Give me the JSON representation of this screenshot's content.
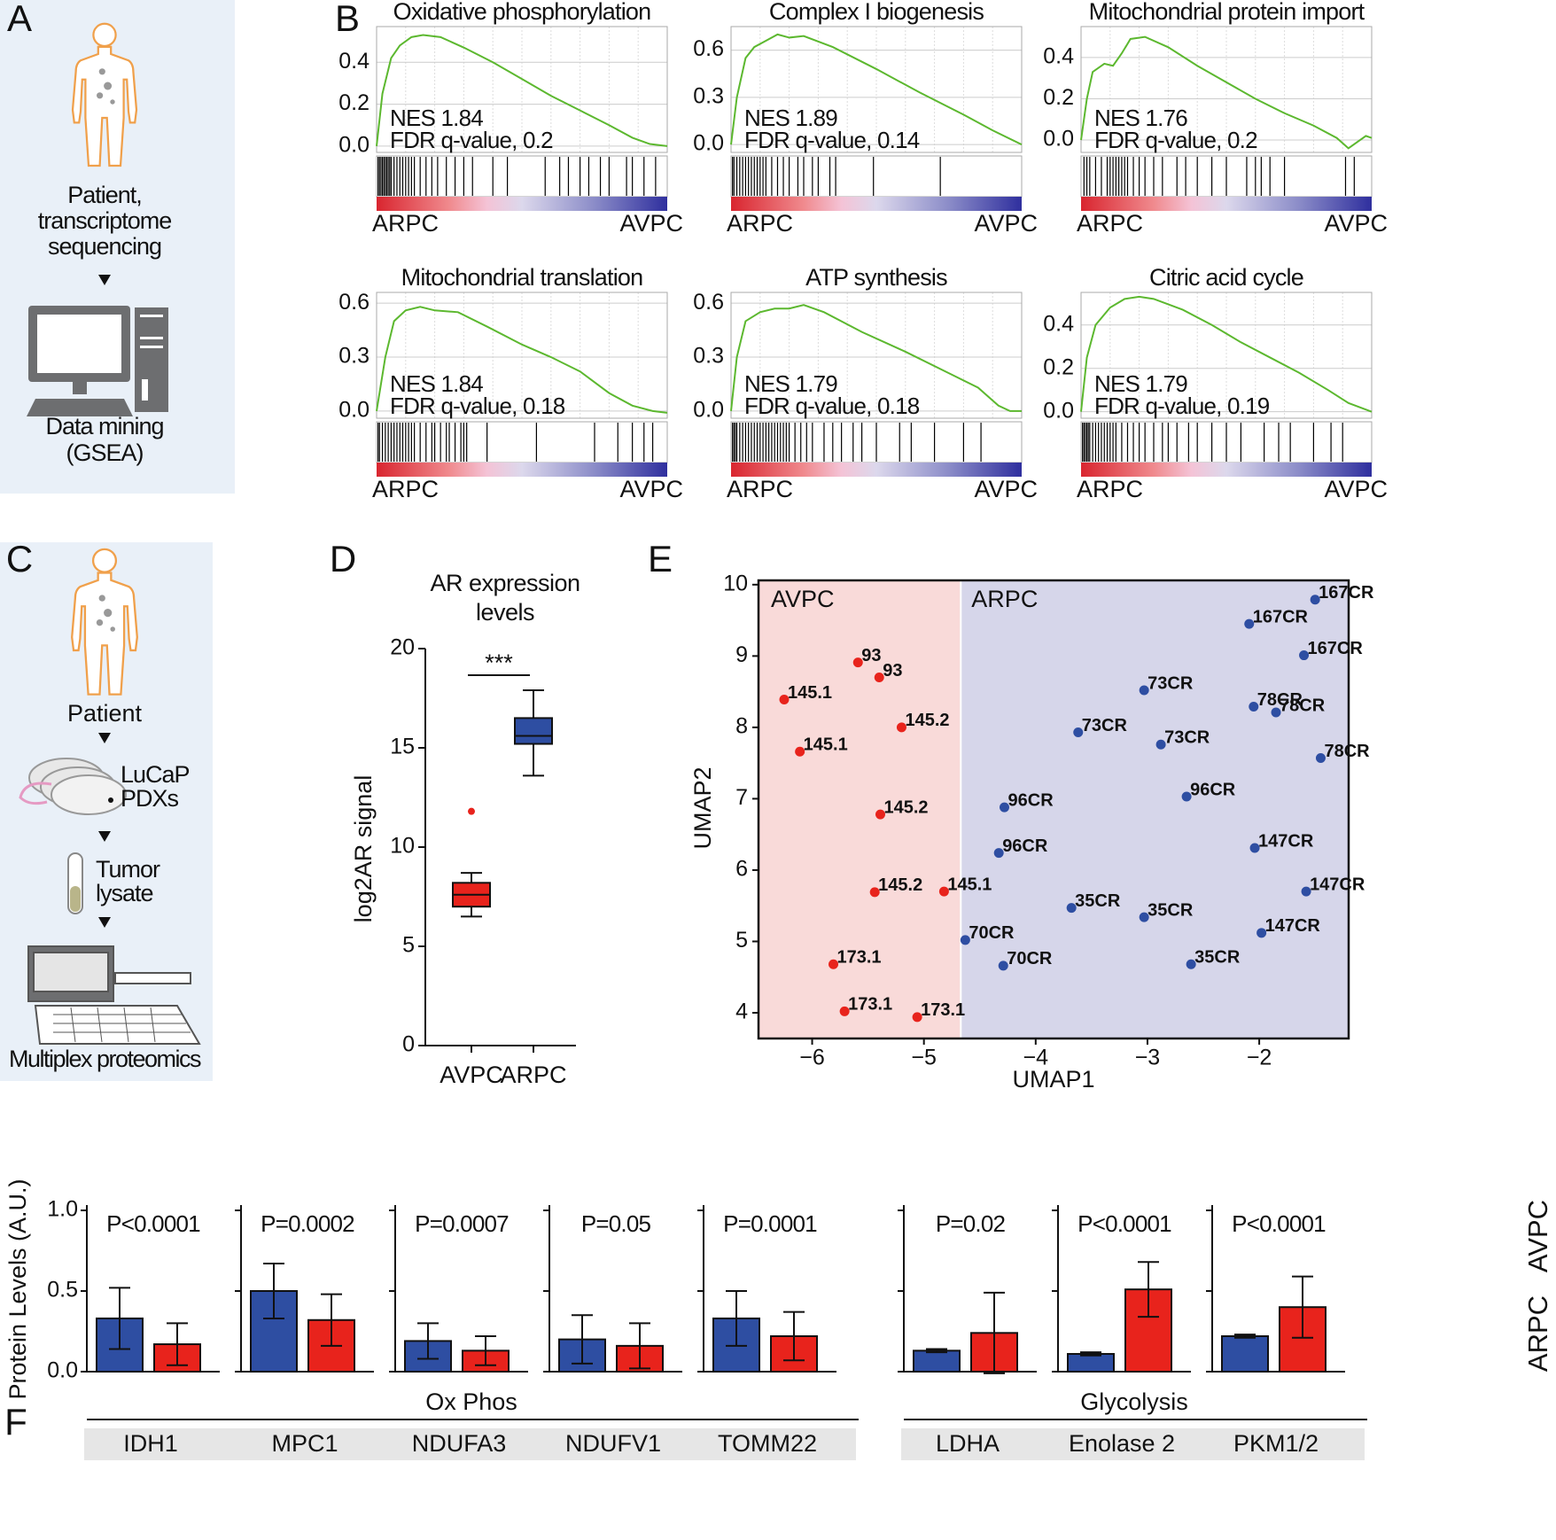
{
  "panel_labels": [
    "A",
    "B",
    "C",
    "D",
    "E",
    "F"
  ],
  "panel_a": {
    "lines": [
      "Patient,",
      "transcriptome",
      "sequencing"
    ],
    "step": [
      "Data mining",
      "(GSEA)"
    ]
  },
  "panel_c": {
    "patient": "Patient",
    "pdx": [
      "LuCaP",
      "PDXs"
    ],
    "lysate": [
      "Tumor",
      "lysate"
    ],
    "proteomics": "Multiplex proteomics"
  },
  "chart_data": [
    {
      "type": "line",
      "title": "Oxidative phosphorylation",
      "color": "#5cb82f",
      "grid": true,
      "xlim": [
        0,
        1
      ],
      "ylim": [
        -0.03,
        0.57
      ],
      "yticks": [
        {
          "value": 0,
          "label": "0.0"
        },
        0.2,
        0.4
      ],
      "x": [
        0,
        0.02,
        0.05,
        0.08,
        0.12,
        0.16,
        0.22,
        0.3,
        0.4,
        0.5,
        0.6,
        0.7,
        0.8,
        0.88,
        0.94,
        1
      ],
      "values": [
        0,
        0.25,
        0.42,
        0.48,
        0.52,
        0.53,
        0.52,
        0.47,
        0.4,
        0.32,
        0.24,
        0.17,
        0.1,
        0.04,
        0.01,
        0
      ],
      "hits": [
        0.005,
        0.01,
        0.015,
        0.02,
        0.025,
        0.03,
        0.035,
        0.04,
        0.045,
        0.05,
        0.06,
        0.07,
        0.08,
        0.09,
        0.1,
        0.11,
        0.12,
        0.13,
        0.15,
        0.17,
        0.19,
        0.21,
        0.24,
        0.27,
        0.3,
        0.33,
        0.4,
        0.45,
        0.58,
        0.63,
        0.66,
        0.7,
        0.73,
        0.77,
        0.8,
        0.86,
        0.88,
        0.92,
        0.96
      ],
      "annotations": [
        "NES 1.84",
        "FDR q-value, 0.2"
      ],
      "left_label": "ARPC",
      "right_label": "AVPC",
      "left_color": "#2b3f9e",
      "right_color": "#e8231c"
    },
    {
      "type": "line",
      "title": "Complex I biogenesis",
      "color": "#5cb82f",
      "grid": true,
      "xlim": [
        0,
        1
      ],
      "ylim": [
        -0.05,
        0.75
      ],
      "yticks": [
        {
          "value": 0,
          "label": "0.0"
        },
        0.3,
        0.6
      ],
      "x": [
        0,
        0.02,
        0.05,
        0.08,
        0.12,
        0.16,
        0.2,
        0.25,
        0.35,
        0.5,
        0.65,
        0.8,
        0.9,
        1
      ],
      "values": [
        0,
        0.3,
        0.55,
        0.62,
        0.66,
        0.7,
        0.68,
        0.69,
        0.62,
        0.48,
        0.33,
        0.19,
        0.09,
        0
      ],
      "hits": [
        0.005,
        0.01,
        0.02,
        0.03,
        0.04,
        0.05,
        0.06,
        0.07,
        0.08,
        0.09,
        0.1,
        0.11,
        0.12,
        0.14,
        0.16,
        0.18,
        0.2,
        0.23,
        0.25,
        0.28,
        0.3,
        0.34,
        0.36,
        0.49,
        0.72
      ],
      "annotations": [
        "NES 1.89",
        "FDR q-value, 0.14"
      ],
      "left_label": "ARPC",
      "right_label": "AVPC",
      "left_color": "#2b3f9e",
      "right_color": "#e8231c"
    },
    {
      "type": "line",
      "title": "Mitochondrial protein import",
      "color": "#5cb82f",
      "grid": true,
      "xlim": [
        0,
        1
      ],
      "ylim": [
        -0.06,
        0.55
      ],
      "yticks": [
        {
          "value": 0,
          "label": "0.0"
        },
        0.2,
        0.4
      ],
      "x": [
        0,
        0.02,
        0.04,
        0.08,
        0.11,
        0.14,
        0.17,
        0.22,
        0.3,
        0.4,
        0.5,
        0.6,
        0.7,
        0.8,
        0.88,
        0.92,
        0.96,
        0.98,
        1
      ],
      "values": [
        0,
        0.2,
        0.33,
        0.37,
        0.36,
        0.42,
        0.49,
        0.5,
        0.45,
        0.36,
        0.28,
        0.2,
        0.13,
        0.07,
        0.01,
        -0.04,
        0,
        0.02,
        0.01
      ],
      "hits": [
        0.01,
        0.02,
        0.03,
        0.05,
        0.07,
        0.09,
        0.1,
        0.11,
        0.12,
        0.13,
        0.14,
        0.15,
        0.16,
        0.18,
        0.2,
        0.22,
        0.25,
        0.28,
        0.33,
        0.36,
        0.4,
        0.45,
        0.5,
        0.57,
        0.6,
        0.62,
        0.65,
        0.7,
        0.91,
        0.94
      ],
      "annotations": [
        "NES 1.76",
        "FDR q-value, 0.2"
      ],
      "left_label": "ARPC",
      "right_label": "AVPC",
      "left_color": "#2b3f9e",
      "right_color": "#e8231c"
    },
    {
      "type": "line",
      "title": "Mitochondrial translation",
      "color": "#5cb82f",
      "grid": true,
      "xlim": [
        0,
        1
      ],
      "ylim": [
        -0.04,
        0.66
      ],
      "yticks": [
        {
          "value": 0,
          "label": "0.0"
        },
        0.3,
        0.6
      ],
      "x": [
        0,
        0.03,
        0.06,
        0.1,
        0.15,
        0.2,
        0.28,
        0.38,
        0.5,
        0.6,
        0.7,
        0.8,
        0.88,
        0.95,
        1
      ],
      "values": [
        0,
        0.3,
        0.5,
        0.56,
        0.58,
        0.56,
        0.55,
        0.47,
        0.37,
        0.3,
        0.22,
        0.1,
        0.03,
        0,
        -0.01
      ],
      "hits": [
        0.005,
        0.01,
        0.02,
        0.03,
        0.04,
        0.05,
        0.06,
        0.07,
        0.08,
        0.09,
        0.1,
        0.11,
        0.12,
        0.13,
        0.15,
        0.17,
        0.19,
        0.2,
        0.22,
        0.24,
        0.25,
        0.27,
        0.29,
        0.3,
        0.31,
        0.38,
        0.55,
        0.75,
        0.83,
        0.88,
        0.92,
        0.95
      ],
      "annotations": [
        "NES 1.84",
        "FDR q-value, 0.18"
      ],
      "left_label": "ARPC",
      "right_label": "AVPC",
      "left_color": "#2b3f9e",
      "right_color": "#e8231c"
    },
    {
      "type": "line",
      "title": "ATP synthesis",
      "color": "#5cb82f",
      "grid": true,
      "xlim": [
        0,
        1
      ],
      "ylim": [
        -0.04,
        0.66
      ],
      "yticks": [
        {
          "value": 0,
          "label": "0.0"
        },
        0.3,
        0.6
      ],
      "x": [
        0,
        0.02,
        0.05,
        0.1,
        0.15,
        0.2,
        0.25,
        0.32,
        0.45,
        0.6,
        0.75,
        0.85,
        0.92,
        0.96,
        1
      ],
      "values": [
        0,
        0.3,
        0.5,
        0.55,
        0.57,
        0.57,
        0.59,
        0.55,
        0.44,
        0.33,
        0.21,
        0.13,
        0.03,
        0,
        0
      ],
      "hits": [
        0.005,
        0.01,
        0.015,
        0.02,
        0.03,
        0.04,
        0.05,
        0.06,
        0.07,
        0.08,
        0.09,
        0.1,
        0.11,
        0.12,
        0.13,
        0.14,
        0.15,
        0.16,
        0.17,
        0.18,
        0.19,
        0.2,
        0.22,
        0.24,
        0.26,
        0.28,
        0.32,
        0.35,
        0.38,
        0.42,
        0.45,
        0.5,
        0.58,
        0.62,
        0.7,
        0.8,
        0.86
      ],
      "annotations": [
        "NES 1.79",
        "FDR q-value, 0.18"
      ],
      "left_label": "ARPC",
      "right_label": "AVPC",
      "left_color": "#2b3f9e",
      "right_color": "#e8231c"
    },
    {
      "type": "line",
      "title": "Citric acid cycle",
      "color": "#5cb82f",
      "grid": true,
      "xlim": [
        0,
        1
      ],
      "ylim": [
        -0.03,
        0.55
      ],
      "yticks": [
        {
          "value": 0,
          "label": "0.0"
        },
        0.2,
        0.4
      ],
      "x": [
        0,
        0.02,
        0.05,
        0.1,
        0.15,
        0.2,
        0.25,
        0.35,
        0.45,
        0.55,
        0.65,
        0.75,
        0.85,
        0.92,
        1
      ],
      "values": [
        0,
        0.25,
        0.4,
        0.48,
        0.52,
        0.53,
        0.52,
        0.47,
        0.4,
        0.32,
        0.25,
        0.18,
        0.1,
        0.04,
        0
      ],
      "hits": [
        0.005,
        0.01,
        0.015,
        0.02,
        0.025,
        0.03,
        0.04,
        0.05,
        0.06,
        0.07,
        0.08,
        0.09,
        0.1,
        0.11,
        0.12,
        0.14,
        0.16,
        0.18,
        0.2,
        0.22,
        0.25,
        0.28,
        0.3,
        0.33,
        0.37,
        0.4,
        0.45,
        0.5,
        0.55,
        0.63,
        0.68,
        0.72,
        0.8,
        0.86,
        0.9
      ],
      "annotations": [
        "NES 1.79",
        "FDR q-value, 0.19"
      ],
      "left_label": "ARPC",
      "right_label": "AVPC",
      "left_color": "#2b3f9e",
      "right_color": "#e8231c"
    },
    {
      "type": "box",
      "title_lines": [
        "AR expression",
        "levels"
      ],
      "ylabel": "log2AR signal",
      "categories": [
        "AVPC",
        "ARPC"
      ],
      "colors": [
        "#e8231c",
        "#2e4ea2"
      ],
      "min": [
        6.5,
        13.6
      ],
      "q1": [
        7.0,
        15.2
      ],
      "median": [
        7.6,
        15.6
      ],
      "q3": [
        8.2,
        16.5
      ],
      "max": [
        8.7,
        17.9
      ],
      "outliers": [
        [
          11.8
        ],
        []
      ],
      "ylim": [
        0,
        20
      ],
      "yticks": [
        0,
        5,
        10,
        15,
        20
      ],
      "significance": "***"
    },
    {
      "type": "scatter",
      "xlabel": "UMAP1",
      "ylabel": "UMAP2",
      "xlim": [
        -6.48,
        -1.2
      ],
      "ylim": [
        3.64,
        10.06
      ],
      "divider_x": -4.67,
      "xticks": [
        {
          "value": -6,
          "label": "−6"
        },
        {
          "value": -5,
          "label": "−5"
        },
        {
          "value": -4,
          "label": "−4"
        },
        {
          "value": -3,
          "label": "−3"
        },
        {
          "value": -2,
          "label": "−2"
        }
      ],
      "yticks": [
        4,
        5,
        6,
        7,
        8,
        9,
        10
      ],
      "series": [
        {
          "name": "AVPC",
          "color": "#e8231c",
          "background": "#f9dad9",
          "x": [
            -5.59,
            -5.4,
            -6.25,
            -5.2,
            -6.11,
            -5.39,
            -5.44,
            -4.82,
            -5.81,
            -5.71,
            -5.06
          ],
          "values": [
            8.91,
            8.7,
            8.39,
            8.0,
            7.66,
            6.78,
            5.69,
            5.7,
            4.68,
            4.02,
            3.94
          ],
          "labels": [
            "93",
            "93",
            "145.1",
            "145.2",
            "145.1",
            "145.2",
            "145.2",
            "145.1",
            "173.1",
            "173.1",
            "173.1"
          ]
        },
        {
          "name": "ARPC",
          "color": "#2e4ea2",
          "background": "#d6d6ea",
          "x": [
            -1.5,
            -2.09,
            -1.6,
            -3.03,
            -3.62,
            -2.88,
            -2.05,
            -1.85,
            -1.45,
            -2.65,
            -4.28,
            -4.33,
            -2.04,
            -1.58,
            -1.98,
            -3.68,
            -3.03,
            -2.61,
            -4.63,
            -4.29
          ],
          "values": [
            9.79,
            9.45,
            9.01,
            8.52,
            7.93,
            7.76,
            8.29,
            8.21,
            7.57,
            7.03,
            6.88,
            6.24,
            6.31,
            5.7,
            5.12,
            5.47,
            5.34,
            4.68,
            5.02,
            4.66
          ],
          "labels": [
            "167CR",
            "167CR",
            "167CR",
            "73CR",
            "73CR",
            "73CR",
            "78CR",
            "78CR",
            "78CR",
            "96CR",
            "96CR",
            "96CR",
            "147CR",
            "147CR",
            "147CR",
            "35CR",
            "35CR",
            "35CR",
            "70CR",
            "70CR"
          ]
        }
      ]
    },
    {
      "type": "bar",
      "ylabel": "Protein Levels (A.U.)",
      "ylim": [
        0,
        1.0
      ],
      "yticks": [
        {
          "value": 0,
          "label": "0.0"
        },
        {
          "value": 0.5,
          "label": "0.5"
        },
        {
          "value": 1,
          "label": "1.0"
        }
      ],
      "groups": [
        {
          "name": "Ox Phos",
          "categories": [
            "IDH1",
            "MPC1",
            "NDUFA3",
            "NDUFV1",
            "TOMM22"
          ]
        },
        {
          "name": "Glycolysis",
          "categories": [
            "LDHA",
            "Enolase 2",
            "PKM1/2"
          ]
        }
      ],
      "p_values": [
        "P<0.0001",
        "P=0.0002",
        "P=0.0007",
        "P=0.05",
        "P=0.0001",
        "P=0.02",
        "P<0.0001",
        "P<0.0001"
      ],
      "series": [
        {
          "name": "ARPC",
          "color": "#2e4ea2",
          "values": [
            0.33,
            0.5,
            0.19,
            0.2,
            0.33,
            0.13,
            0.11,
            0.22
          ],
          "errors": [
            0.19,
            0.17,
            0.11,
            0.15,
            0.17,
            0.01,
            0.01,
            0.01
          ]
        },
        {
          "name": "AVPC",
          "color": "#e8231c",
          "values": [
            0.17,
            0.32,
            0.13,
            0.16,
            0.22,
            0.24,
            0.51,
            0.4
          ],
          "errors": [
            0.13,
            0.16,
            0.09,
            0.14,
            0.15,
            0.25,
            0.17,
            0.19
          ]
        }
      ]
    }
  ]
}
